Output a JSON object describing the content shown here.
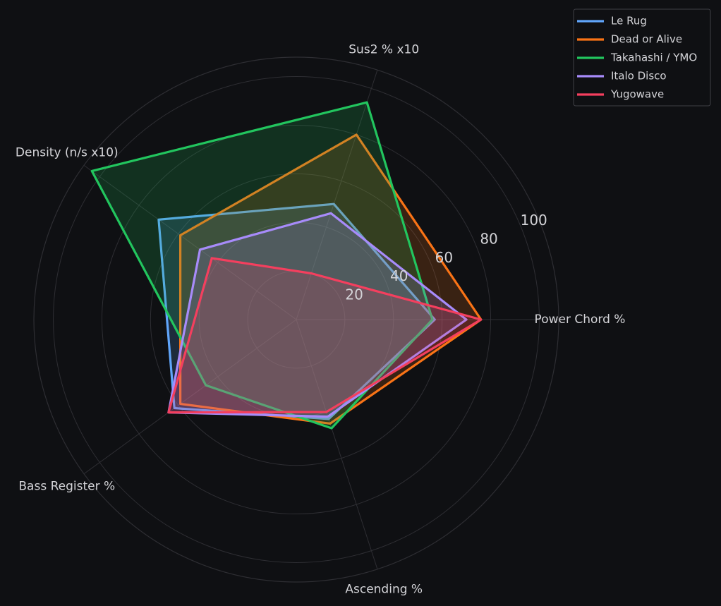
{
  "chart_data": {
    "type": "radar",
    "categories": [
      "Power Chord %",
      "Sus2 % x10",
      "Density (n/s x10)",
      "Bass Register %",
      "Ascending %"
    ],
    "series": [
      {
        "name": "Le Rug",
        "color": "#60a5fa",
        "values": [
          57,
          50,
          70,
          62,
          43
        ]
      },
      {
        "name": "Dead or Alive",
        "color": "#f97316",
        "values": [
          76,
          80,
          59,
          59,
          45
        ]
      },
      {
        "name": "Takahashi / YMO",
        "color": "#22c55e",
        "values": [
          56,
          94,
          104,
          46,
          47
        ]
      },
      {
        "name": "Italo Disco",
        "color": "#a78bfa",
        "values": [
          70,
          46,
          49,
          65,
          42
        ]
      },
      {
        "name": "Yugowave",
        "color": "#f43f5e",
        "values": [
          76,
          20,
          43,
          65,
          40
        ]
      }
    ],
    "ylim": [
      0,
      108
    ],
    "yticks": [
      20,
      40,
      60,
      80,
      100
    ],
    "grid": true,
    "legend": "upper right"
  }
}
